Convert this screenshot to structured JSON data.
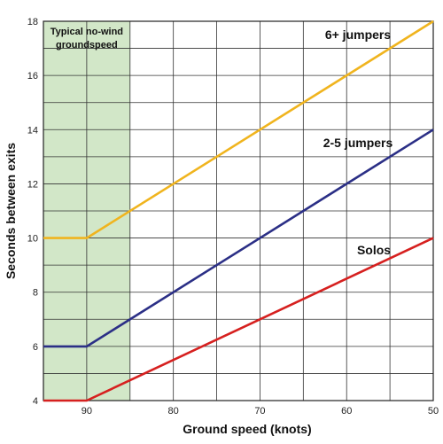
{
  "chart_data": {
    "type": "line",
    "title": "",
    "xlabel": "Ground speed (knots)",
    "ylabel": "Seconds between exits",
    "xlim": [
      95,
      50
    ],
    "ylim": [
      4,
      18
    ],
    "x_ticks": [
      90,
      80,
      70,
      60,
      50
    ],
    "y_ticks": [
      4,
      6,
      8,
      10,
      12,
      14,
      16,
      18
    ],
    "grid": true,
    "shaded_region": {
      "x_range": [
        95,
        85
      ],
      "color": "#d2e7c8",
      "label_line1": "Typical no-wind",
      "label_line2": "groundspeed"
    },
    "series": [
      {
        "name": "6+ jumpers",
        "color": "#f0b41e",
        "x": [
          95,
          90,
          50
        ],
        "y": [
          10,
          10,
          18
        ]
      },
      {
        "name": "2-5 jumpers",
        "color": "#2b2f86",
        "x": [
          95,
          90,
          50
        ],
        "y": [
          6,
          6,
          14
        ]
      },
      {
        "name": "Solos",
        "color": "#d6201f",
        "x": [
          95,
          90,
          50
        ],
        "y": [
          4,
          4,
          10
        ]
      }
    ]
  }
}
